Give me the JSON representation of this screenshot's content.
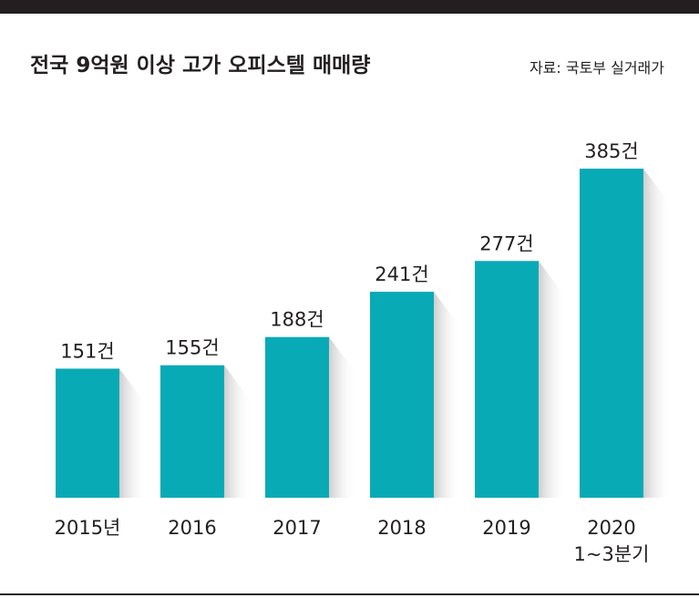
{
  "header": {
    "title": "전국 9억원 이상 고가 오피스텔 매매량",
    "source": "자료: 국토부 실거래가"
  },
  "colors": {
    "bar": "#08aab6",
    "text": "#231f20",
    "rule": "#231f20"
  },
  "chart_data": {
    "type": "bar",
    "title": "전국 9억원 이상 고가 오피스텔 매매량",
    "xlabel": "",
    "ylabel": "",
    "unit": "건",
    "categories": [
      "2015년",
      "2016",
      "2017",
      "2018",
      "2019",
      "2020\n1~3분기"
    ],
    "values": [
      151,
      155,
      188,
      241,
      277,
      385
    ],
    "value_labels": [
      "151건",
      "155건",
      "188건",
      "241건",
      "277건",
      "385건"
    ],
    "ylim": [
      0,
      400
    ],
    "grid": false,
    "legend": "none"
  }
}
